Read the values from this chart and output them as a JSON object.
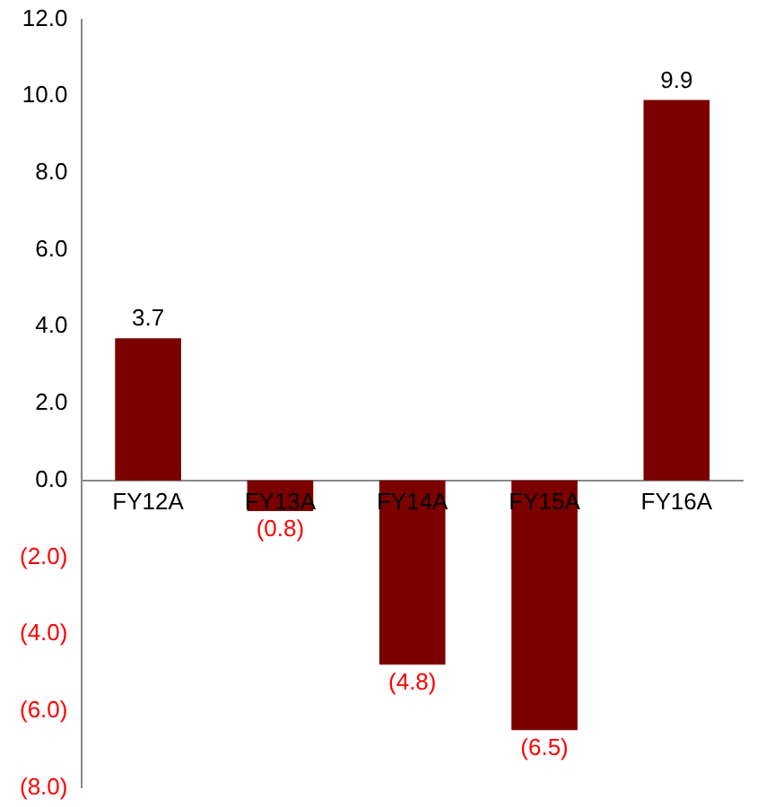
{
  "chart_data": {
    "type": "bar",
    "categories": [
      "FY12A",
      "FY13A",
      "FY14A",
      "FY15A",
      "FY16A"
    ],
    "values": [
      3.7,
      -0.8,
      -4.8,
      -6.5,
      9.9
    ],
    "color": "#7b0000",
    "value_labels": [
      "3.7",
      "(0.8)",
      "(4.8)",
      "(6.5)",
      "9.9"
    ],
    "ylim": [
      -8,
      12
    ],
    "yticks": [
      {
        "value": -8,
        "label": "(8.0)"
      },
      {
        "value": -6,
        "label": "(6.0)"
      },
      {
        "value": -4,
        "label": "(4.0)"
      },
      {
        "value": -2,
        "label": "(2.0)"
      },
      {
        "value": 0,
        "label": "0.0"
      },
      {
        "value": 2,
        "label": "2.0"
      },
      {
        "value": 4,
        "label": "4.0"
      },
      {
        "value": 6,
        "label": "6.0"
      },
      {
        "value": 8,
        "label": "8.0"
      },
      {
        "value": 10,
        "label": "10.0"
      },
      {
        "value": 12,
        "label": "12.0"
      }
    ],
    "grid": false,
    "legend": false
  }
}
